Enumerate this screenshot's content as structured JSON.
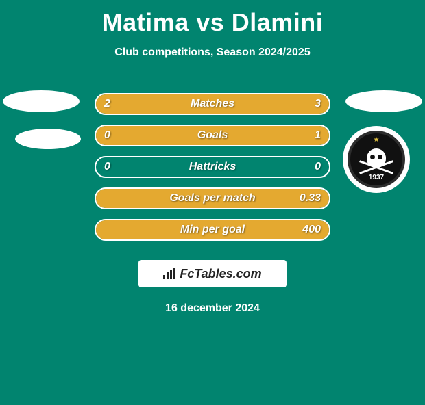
{
  "header": {
    "title": "Matima vs Dlamini",
    "subtitle": "Club competitions, Season 2024/2025"
  },
  "badge": {
    "year": "1937"
  },
  "stats": [
    {
      "label": "Matches",
      "left_value": "2",
      "right_value": "3",
      "left_fill_pct": 40,
      "right_fill_pct": 60
    },
    {
      "label": "Goals",
      "left_value": "0",
      "right_value": "1",
      "left_fill_pct": 0,
      "right_fill_pct": 100
    },
    {
      "label": "Hattricks",
      "left_value": "0",
      "right_value": "0",
      "left_fill_pct": 0,
      "right_fill_pct": 0
    },
    {
      "label": "Goals per match",
      "left_value": "",
      "right_value": "0.33",
      "left_fill_pct": 0,
      "right_fill_pct": 100
    },
    {
      "label": "Min per goal",
      "left_value": "",
      "right_value": "400",
      "left_fill_pct": 0,
      "right_fill_pct": 100
    }
  ],
  "footer": {
    "brand": "FcTables.com",
    "date": "16 december 2024"
  },
  "colors": {
    "background": "#01846f",
    "bar_fill": "#e4a930",
    "bar_border": "#ffffff",
    "text": "#ffffff"
  }
}
